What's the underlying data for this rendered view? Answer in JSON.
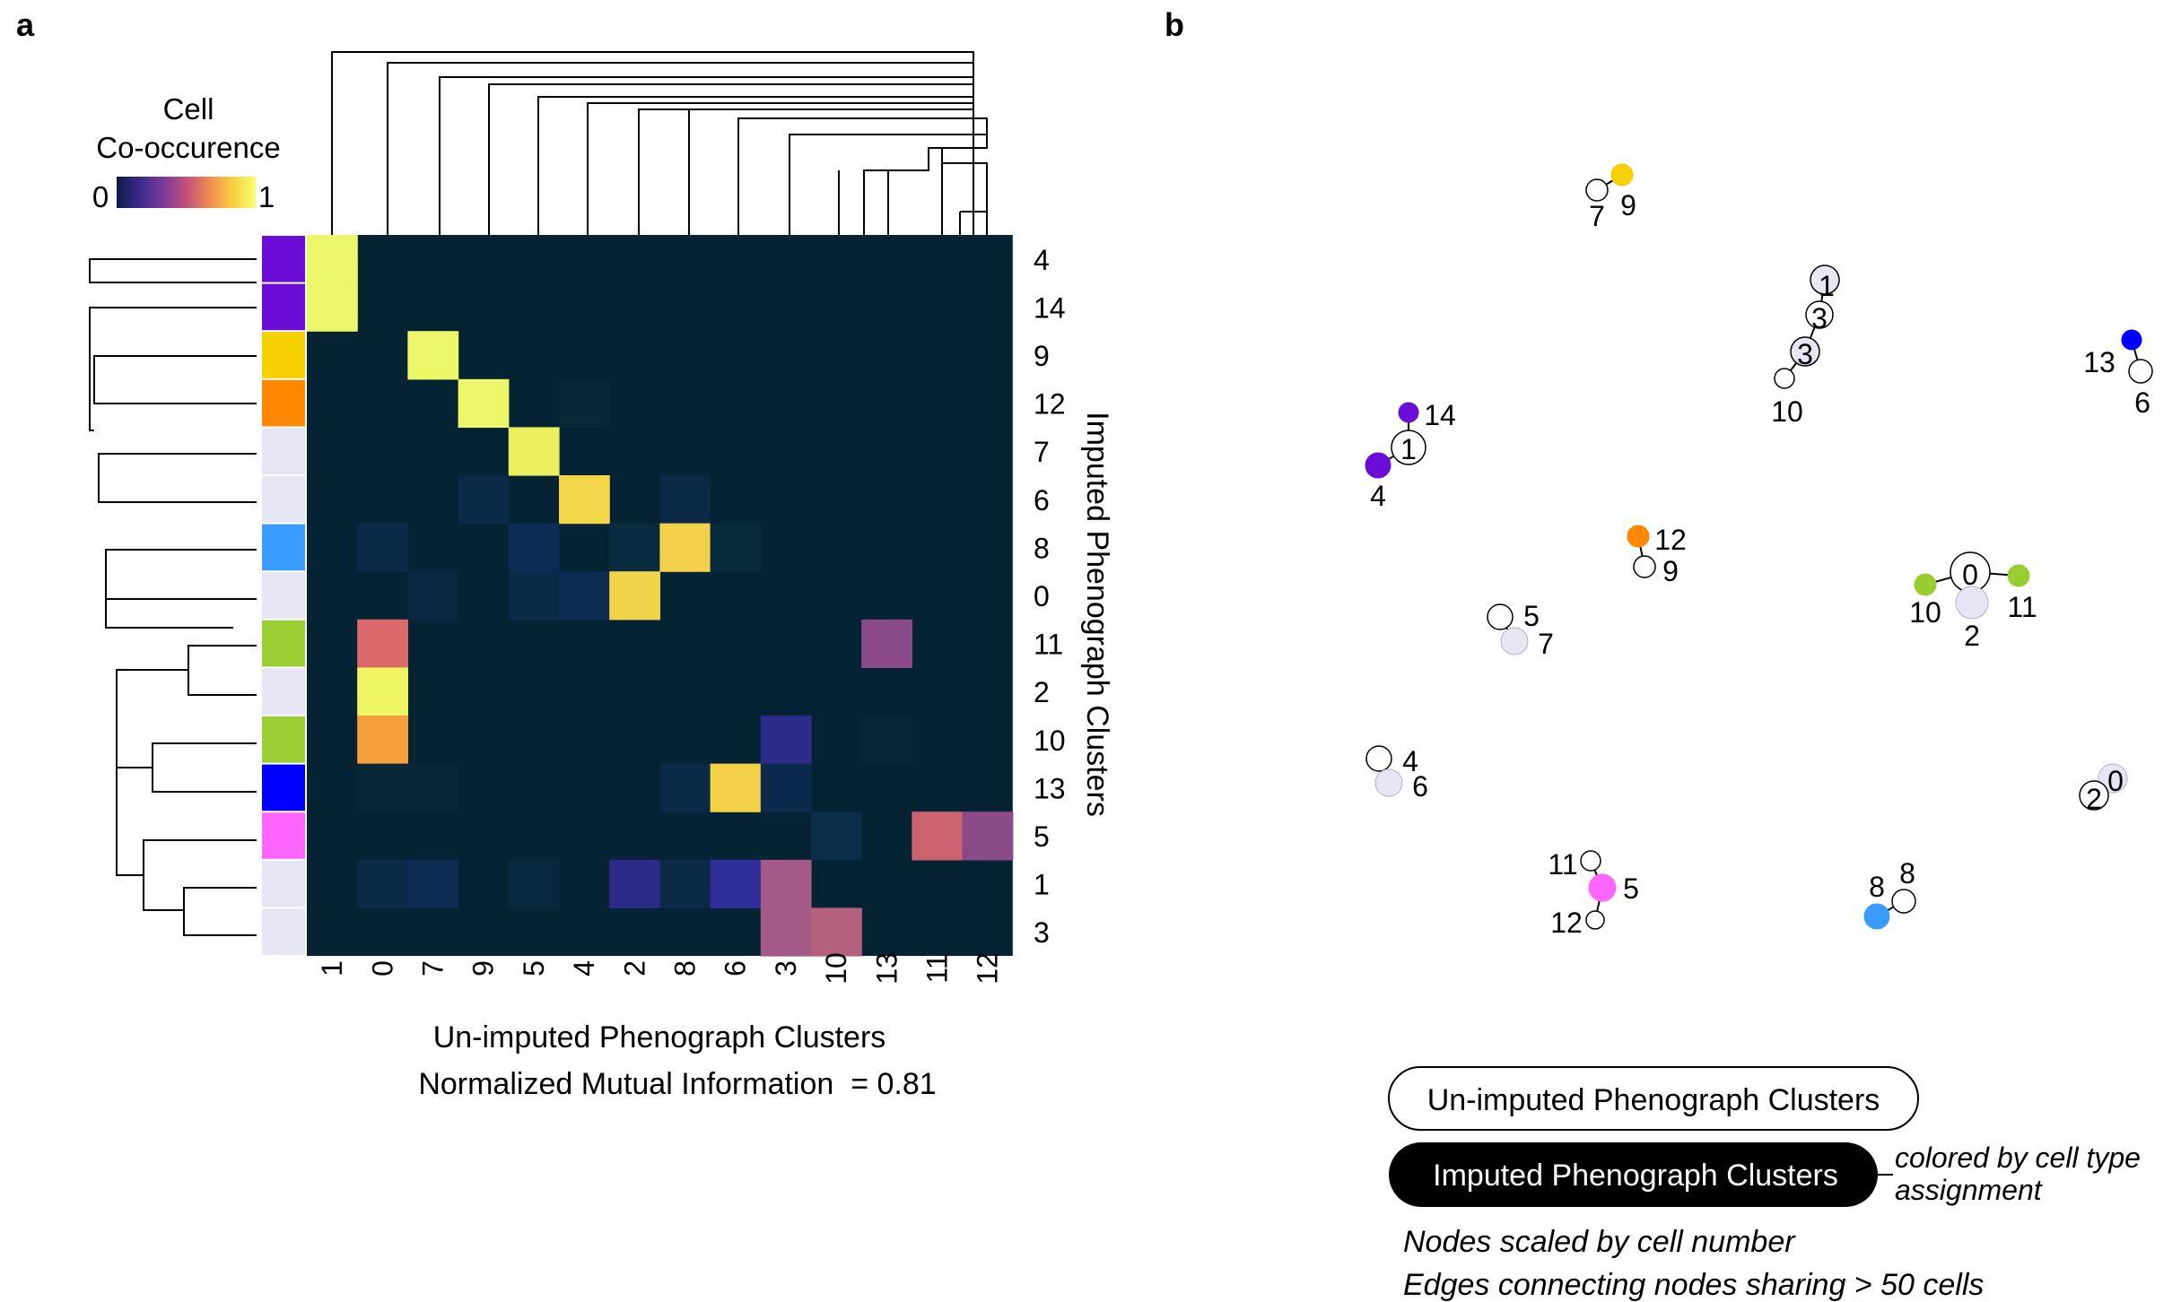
{
  "panel_a": {
    "label": "a",
    "colorbar": {
      "title_line1": "Cell",
      "title_line2": "Co-occurence",
      "min_label": "0",
      "max_label": "1",
      "colors": [
        "#0d1b4a",
        "#3b2a8a",
        "#7a3a9a",
        "#c0507a",
        "#f08a50",
        "#f7d040",
        "#f5ff70"
      ]
    },
    "xlabel": "Un-imputed Phenograph Clusters",
    "annotation": "Normalized Mutual Information  = 0.81"
  },
  "panel_b": {
    "label": "b",
    "legend": {
      "unimputed": "Un-imputed Phenograph Clusters",
      "imputed": "Imputed Phenograph Clusters",
      "colored_line1": "colored by cell type",
      "colored_line2": "assignment",
      "note1": "Nodes scaled by cell number",
      "note2": "Edges connecting nodes sharing > 50 cells"
    }
  },
  "chart_data": [
    {
      "type": "heatmap",
      "title": "",
      "xlabel": "Un-imputed Phenograph Clusters",
      "ylabel": "Imputed Phenograph Clusters",
      "x_categories": [
        "1",
        "0",
        "7",
        "9",
        "5",
        "4",
        "2",
        "8",
        "6",
        "3",
        "10",
        "13",
        "11",
        "12"
      ],
      "y_categories": [
        "4",
        "14",
        "9",
        "12",
        "7",
        "6",
        "8",
        "0",
        "11",
        "2",
        "10",
        "13",
        "5",
        "1",
        "3"
      ],
      "row_colors": [
        "#6a0dd6",
        "#6a0dd6",
        "#f7d000",
        "#ff8800",
        "#e6e6f5",
        "#e6e6f5",
        "#3b9cff",
        "#e6e6f5",
        "#9acd32",
        "#e6e6f5",
        "#9acd32",
        "#0000ff",
        "#ff66ff",
        "#e6e6f5",
        "#e6e6f5"
      ],
      "background": "#062333",
      "colorscale_range": [
        0,
        1
      ],
      "cells": [
        {
          "row": "4",
          "col": "1",
          "value": 0.98
        },
        {
          "row": "14",
          "col": "1",
          "value": 0.98
        },
        {
          "row": "9",
          "col": "7",
          "value": 0.98
        },
        {
          "row": "12",
          "col": "9",
          "value": 0.98
        },
        {
          "row": "12",
          "col": "4",
          "value": 0.03
        },
        {
          "row": "7",
          "col": "5",
          "value": 0.95
        },
        {
          "row": "6",
          "col": "9",
          "value": 0.05
        },
        {
          "row": "6",
          "col": "4",
          "value": 0.9
        },
        {
          "row": "6",
          "col": "8",
          "value": 0.04
        },
        {
          "row": "8",
          "col": "0",
          "value": 0.05
        },
        {
          "row": "8",
          "col": "5",
          "value": 0.08
        },
        {
          "row": "8",
          "col": "2",
          "value": 0.03
        },
        {
          "row": "8",
          "col": "8",
          "value": 0.92
        },
        {
          "row": "8",
          "col": "6",
          "value": 0.02
        },
        {
          "row": "0",
          "col": "7",
          "value": 0.04
        },
        {
          "row": "0",
          "col": "5",
          "value": 0.05
        },
        {
          "row": "0",
          "col": "4",
          "value": 0.06
        },
        {
          "row": "0",
          "col": "2",
          "value": 0.9
        },
        {
          "row": "11",
          "col": "0",
          "value": 0.6
        },
        {
          "row": "11",
          "col": "13",
          "value": 0.5
        },
        {
          "row": "2",
          "col": "0",
          "value": 0.98
        },
        {
          "row": "10",
          "col": "0",
          "value": 0.8
        },
        {
          "row": "10",
          "col": "3",
          "value": 0.25
        },
        {
          "row": "10",
          "col": "13",
          "value": 0.02
        },
        {
          "row": "13",
          "col": "0",
          "value": 0.02
        },
        {
          "row": "13",
          "col": "7",
          "value": 0.02
        },
        {
          "row": "13",
          "col": "8",
          "value": 0.04
        },
        {
          "row": "13",
          "col": "6",
          "value": 0.9
        },
        {
          "row": "13",
          "col": "3",
          "value": 0.06
        },
        {
          "row": "5",
          "col": "10",
          "value": 0.06
        },
        {
          "row": "5",
          "col": "11",
          "value": 0.62
        },
        {
          "row": "5",
          "col": "12",
          "value": 0.5
        },
        {
          "row": "1",
          "col": "0",
          "value": 0.04
        },
        {
          "row": "1",
          "col": "7",
          "value": 0.06
        },
        {
          "row": "1",
          "col": "5",
          "value": 0.02
        },
        {
          "row": "1",
          "col": "2",
          "value": 0.25
        },
        {
          "row": "1",
          "col": "8",
          "value": 0.06
        },
        {
          "row": "1",
          "col": "6",
          "value": 0.3
        },
        {
          "row": "1",
          "col": "3",
          "value": 0.55
        },
        {
          "row": "3",
          "col": "3",
          "value": 0.55
        },
        {
          "row": "3",
          "col": "10",
          "value": 0.58
        }
      ],
      "cell_colors_note": "colors follow colorbar",
      "color_overrides": {
        "4|1": "#ecf76a",
        "14|1": "#ecf76a",
        "9|7": "#ecf76a",
        "12|9": "#ecf76a",
        "12|4": "#082838",
        "7|5": "#eaf05e",
        "6|9": "#0a2a48",
        "6|4": "#f2d548",
        "6|8": "#0a2a48",
        "8|0": "#0a2a48",
        "8|5": "#0c2c55",
        "8|2": "#082b40",
        "8|8": "#f4d14a",
        "8|6": "#072a3c",
        "0|7": "#09283f",
        "0|5": "#0b2a48",
        "0|4": "#0b2b50",
        "0|2": "#f3d34b",
        "11|0": "#db6a6a",
        "11|13": "#8a4a8a",
        "2|0": "#eef562",
        "10|0": "#f6a03c",
        "10|3": "#2c2c8a",
        "10|13": "#072737",
        "13|0": "#072737",
        "13|7": "#072737",
        "13|8": "#0b2a48",
        "13|6": "#f3d148",
        "13|3": "#0b2a4c",
        "5|10": "#0a2e4a",
        "5|11": "#cc6470",
        "5|12": "#8a4a88",
        "1|0": "#0b2a46",
        "1|7": "#0d2c52",
        "1|5": "#08283e",
        "1|2": "#2e2a8a",
        "1|8": "#0b2a48",
        "1|6": "#2d2e9a",
        "1|3": "#a45a86",
        "3|3": "#a45a86",
        "3|10": "#b3607e"
      }
    },
    {
      "type": "network",
      "title": "",
      "nodes": [
        {
          "id": "u7a",
          "label": "7",
          "kind": "unimputed",
          "color": "#ffffff"
        },
        {
          "id": "i9a",
          "label": "9",
          "kind": "imputed",
          "color": "#f7d000"
        },
        {
          "id": "u1a",
          "label": "1",
          "kind": "unimputed",
          "color": "#e6e6f5"
        },
        {
          "id": "u3a",
          "label": "3",
          "kind": "unimputed",
          "color": "#ffffff"
        },
        {
          "id": "u3b",
          "label": "3",
          "kind": "unimputed",
          "color": "#e6e6f5"
        },
        {
          "id": "u10a",
          "label": "10",
          "kind": "unimputed",
          "color": "#ffffff"
        },
        {
          "id": "i13",
          "label": "13",
          "kind": "imputed",
          "color": "#0000ff"
        },
        {
          "id": "u6a",
          "label": "6",
          "kind": "unimputed",
          "color": "#ffffff"
        },
        {
          "id": "i14",
          "label": "14",
          "kind": "imputed",
          "color": "#6a0dd6"
        },
        {
          "id": "u1b",
          "label": "1",
          "kind": "unimputed",
          "color": "#ffffff"
        },
        {
          "id": "i4",
          "label": "4",
          "kind": "imputed",
          "color": "#6a0dd6"
        },
        {
          "id": "i12",
          "label": "12",
          "kind": "imputed",
          "color": "#ff8800"
        },
        {
          "id": "u9b",
          "label": "9",
          "kind": "unimputed",
          "color": "#ffffff"
        },
        {
          "id": "u0",
          "label": "0",
          "kind": "unimputed",
          "color": "#ffffff"
        },
        {
          "id": "i10",
          "label": "10",
          "kind": "imputed",
          "color": "#9acd32"
        },
        {
          "id": "i11",
          "label": "11",
          "kind": "imputed",
          "color": "#9acd32"
        },
        {
          "id": "i2",
          "label": "2",
          "kind": "imputed",
          "color": "#e6e6f5"
        },
        {
          "id": "u5",
          "label": "5",
          "kind": "unimputed",
          "color": "#ffffff"
        },
        {
          "id": "i7",
          "label": "7",
          "kind": "imputed",
          "color": "#e6e6f5"
        },
        {
          "id": "u4",
          "label": "4",
          "kind": "unimputed",
          "color": "#ffffff"
        },
        {
          "id": "i6",
          "label": "6",
          "kind": "imputed",
          "color": "#e6e6f5"
        },
        {
          "id": "i0b",
          "label": "0",
          "kind": "imputed",
          "color": "#e6e6f5"
        },
        {
          "id": "u2b",
          "label": "2",
          "kind": "unimputed",
          "color": "#ffffff"
        },
        {
          "id": "u11",
          "label": "11",
          "kind": "unimputed",
          "color": "#ffffff"
        },
        {
          "id": "i5",
          "label": "5",
          "kind": "imputed",
          "color": "#ff66ff"
        },
        {
          "id": "u12",
          "label": "12",
          "kind": "unimputed",
          "color": "#ffffff"
        },
        {
          "id": "i8",
          "label": "8",
          "kind": "imputed",
          "color": "#3b9cff"
        },
        {
          "id": "u8",
          "label": "8",
          "kind": "unimputed",
          "color": "#ffffff"
        }
      ],
      "edges": [
        [
          "u7a",
          "i9a"
        ],
        [
          "u1a",
          "u3a"
        ],
        [
          "u3a",
          "u3b"
        ],
        [
          "u3b",
          "u10a"
        ],
        [
          "i13",
          "u6a"
        ],
        [
          "i14",
          "u1b"
        ],
        [
          "u1b",
          "i4"
        ],
        [
          "i12",
          "u9b"
        ],
        [
          "u0",
          "i10"
        ],
        [
          "u0",
          "i11"
        ],
        [
          "u0",
          "i2"
        ],
        [
          "u5",
          "i7"
        ],
        [
          "u4",
          "i6"
        ],
        [
          "i0b",
          "u2b"
        ],
        [
          "u11",
          "i5"
        ],
        [
          "i5",
          "u12"
        ],
        [
          "i8",
          "u8"
        ]
      ]
    }
  ]
}
